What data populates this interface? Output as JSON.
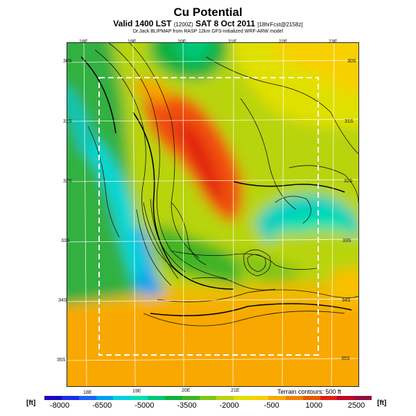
{
  "header": {
    "title": "Cu Potential",
    "subtitle_main": "Valid 1400 LST",
    "subtitle_time": "(1200Z)",
    "subtitle_date": "SAT 8 Oct 2011",
    "subtitle_fcst": "[18hrFcst@2158z]",
    "credit": "Dr.Jack BLIPMAP from RASP 12km GFS-initialized WRF-ARW model"
  },
  "map": {
    "lon_ticks_top": [
      "18E",
      "19E",
      "20E",
      "21E",
      "22E",
      "23E"
    ],
    "lon_ticks_bottom": [
      "18E",
      "19E",
      "20E",
      "21E"
    ],
    "lat_ticks_left": [
      "30S",
      "31S",
      "32S",
      "33S",
      "34S",
      "35S"
    ],
    "lat_ticks_right": [
      "30S",
      "31S",
      "32S",
      "33S",
      "34S",
      "35S"
    ],
    "contour_note": "Terrain contours: 500 ft"
  },
  "colorbar": {
    "unit_left": "[ft]",
    "unit_right": "[ft]",
    "labels": [
      "-8000",
      "-6500",
      "-5000",
      "-3500",
      "-2000",
      "-500",
      "1000",
      "2500"
    ],
    "colors": [
      "#1a08c0",
      "#1a2cf0",
      "#1a64f5",
      "#00a0f0",
      "#00d2e0",
      "#00e0b0",
      "#00c878",
      "#10b040",
      "#40b428",
      "#80c418",
      "#b8d410",
      "#e0e000",
      "#f8d000",
      "#f8a800",
      "#f08000",
      "#e85800",
      "#e02010",
      "#c00828",
      "#901040"
    ]
  }
}
